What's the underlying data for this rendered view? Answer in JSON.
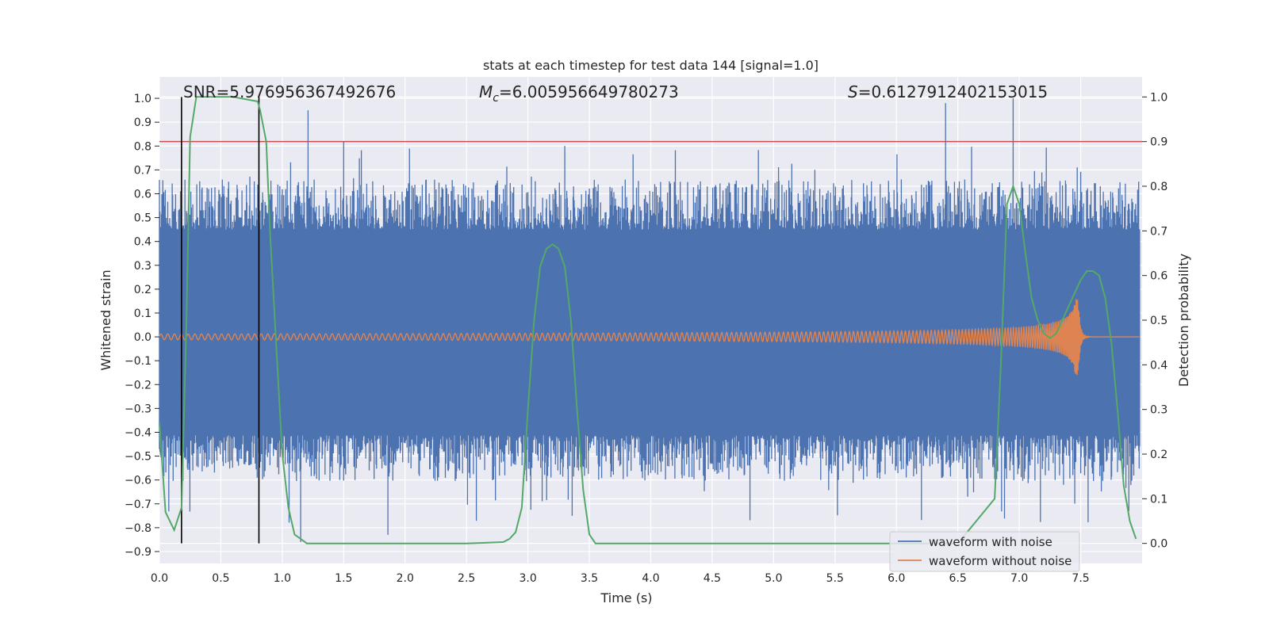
{
  "chart_data": {
    "type": "line",
    "title": "stats at each timestep for test data 144 [signal=1.0]",
    "xlabel": "Time (s)",
    "ylabel": "Whitened strain",
    "y2label": "Detection probability",
    "xlim": [
      0.0,
      8.0
    ],
    "ylim": [
      -0.95,
      1.09
    ],
    "y2lim": [
      -0.045,
      1.045
    ],
    "x_ticks": [
      "0.0",
      "0.5",
      "1.0",
      "1.5",
      "2.0",
      "2.5",
      "3.0",
      "3.5",
      "4.0",
      "4.5",
      "5.0",
      "5.5",
      "6.0",
      "6.5",
      "7.0",
      "7.5"
    ],
    "y_ticks": [
      "1.0",
      "0.9",
      "0.8",
      "0.7",
      "0.6",
      "0.5",
      "0.4",
      "0.3",
      "0.2",
      "0.1",
      "0.0",
      "−0.1",
      "−0.2",
      "−0.3",
      "−0.4",
      "−0.5",
      "−0.6",
      "−0.7",
      "−0.8",
      "−0.9"
    ],
    "y2_ticks": [
      "1.0",
      "0.9",
      "0.8",
      "0.7",
      "0.6",
      "0.5",
      "0.4",
      "0.3",
      "0.2",
      "0.1",
      "0.0"
    ],
    "grid": true,
    "legend_position": "lower-right",
    "annotations": {
      "snr": "SNR=5.976956367492676",
      "mc_symbol": "M",
      "mc_sub": "c",
      "mc_value": "=6.005956649780273",
      "s_symbol": "S",
      "s_value": "=0.6127912402153015"
    },
    "series": [
      {
        "name": "waveform with noise",
        "color": "#4c72b0",
        "kind": "noise_band",
        "typical_range": [
          -0.55,
          0.6
        ],
        "peaks": [
          [
            1.21,
            0.95
          ],
          [
            1.5,
            0.82
          ],
          [
            3.3,
            0.8
          ],
          [
            6.4,
            0.98
          ],
          [
            6.95,
            1.0
          ],
          [
            1.86,
            -0.83
          ],
          [
            1.15,
            -0.86
          ]
        ]
      },
      {
        "name": "waveform without noise",
        "color": "#dd8452",
        "kind": "chirp",
        "t_merger": 7.48,
        "amp_start": 0.012,
        "amp_merger": 0.16
      }
    ],
    "detection_probability": {
      "color": "#55a868",
      "x": [
        0.0,
        0.05,
        0.12,
        0.18,
        0.22,
        0.25,
        0.3,
        0.4,
        0.6,
        0.8,
        0.82,
        0.87,
        0.9,
        0.95,
        1.0,
        1.05,
        1.1,
        1.2,
        1.5,
        2.0,
        2.5,
        2.8,
        2.85,
        2.9,
        2.95,
        3.0,
        3.05,
        3.1,
        3.15,
        3.2,
        3.25,
        3.3,
        3.35,
        3.4,
        3.45,
        3.5,
        3.55,
        3.6,
        4.0,
        5.0,
        6.0,
        6.5,
        6.8,
        6.85,
        6.9,
        6.95,
        7.0,
        7.05,
        7.1,
        7.15,
        7.2,
        7.25,
        7.3,
        7.35,
        7.4,
        7.45,
        7.5,
        7.55,
        7.6,
        7.65,
        7.7,
        7.75,
        7.8,
        7.85,
        7.9,
        7.95
      ],
      "y": [
        0.27,
        0.07,
        0.03,
        0.08,
        0.5,
        0.91,
        1.0,
        1.0,
        1.0,
        0.99,
        0.97,
        0.9,
        0.7,
        0.45,
        0.2,
        0.08,
        0.02,
        0.0,
        0.0,
        0.0,
        0.0,
        0.003,
        0.01,
        0.025,
        0.08,
        0.3,
        0.5,
        0.62,
        0.66,
        0.67,
        0.66,
        0.62,
        0.5,
        0.3,
        0.12,
        0.02,
        0.0,
        0.0,
        0.0,
        0.0,
        0.0,
        0.0,
        0.1,
        0.4,
        0.76,
        0.8,
        0.76,
        0.65,
        0.55,
        0.5,
        0.47,
        0.46,
        0.47,
        0.5,
        0.53,
        0.56,
        0.59,
        0.61,
        0.61,
        0.6,
        0.55,
        0.45,
        0.3,
        0.13,
        0.05,
        0.01
      ]
    },
    "reference_lines": [
      {
        "axis": "y2",
        "value": 0.9,
        "color": "#c44e52"
      },
      {
        "axis": "x",
        "value": 0.18,
        "ymin": 0.0,
        "ymax": 1.0,
        "color": "#000000"
      },
      {
        "axis": "x",
        "value": 0.81,
        "ymin": 0.0,
        "ymax": 1.0,
        "color": "#000000"
      }
    ]
  }
}
